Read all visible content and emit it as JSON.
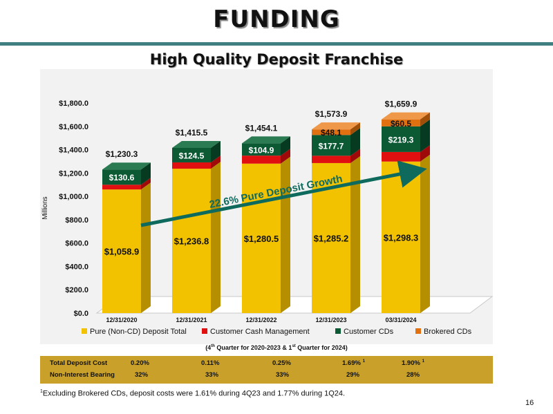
{
  "page": {
    "title": "FUNDING",
    "subtitle": "High Quality Deposit Franchise",
    "page_number": "16"
  },
  "chart_data": {
    "type": "bar",
    "stacked": true,
    "three_d": true,
    "ylabel": "Millions",
    "ylim": [
      0,
      1800
    ],
    "y_ticks": [
      "$0.0",
      "$200.0",
      "$400.0",
      "$600.0",
      "$800.0",
      "$1,000.0",
      "$1,200.0",
      "$1,400.0",
      "$1,600.0",
      "$1,800.0"
    ],
    "categories": [
      "12/31/2020",
      "12/31/2021",
      "12/31/2022",
      "12/31/2023",
      "03/31/2024"
    ],
    "series": [
      {
        "name": "Pure (Non-CD) Deposit Total",
        "color": "#f2c200",
        "side": "#b58f00",
        "top": "#f8d84a",
        "values": [
          1058.9,
          1236.8,
          1280.5,
          1285.2,
          1298.3
        ],
        "labels": [
          "$1,058.9",
          "$1,236.8",
          "$1,280.5",
          "$1,285.2",
          "$1,298.3"
        ]
      },
      {
        "name": "Customer Cash Management",
        "color": "#e01010",
        "side": "#9e0a0a",
        "top": "#f04a4a",
        "values": [
          40.8,
          54.2,
          68.7,
          62.9,
          81.8
        ],
        "labels": [
          "",
          "",
          "",
          "",
          ""
        ]
      },
      {
        "name": "Customer CDs",
        "color": "#0b5a34",
        "side": "#063a21",
        "top": "#2a7a52",
        "values": [
          130.6,
          124.5,
          104.9,
          177.7,
          219.3
        ],
        "labels": [
          "$130.6",
          "$124.5",
          "$104.9",
          "$177.7",
          "$219.3"
        ]
      },
      {
        "name": "Brokered CDs",
        "color": "#e07010",
        "side": "#a04e08",
        "top": "#f0984a",
        "values": [
          0,
          0,
          0,
          48.1,
          60.5
        ],
        "labels": [
          "",
          "",
          "",
          "$48.1",
          "$60.5"
        ]
      }
    ],
    "totals": [
      "$1,230.3",
      "$1,415.5",
      "$1,454.1",
      "$1,573.9",
      "$1,659.9"
    ],
    "legend_position": "bottom",
    "annotation": "22.6% Pure Deposit Growth",
    "arrow_color": "#0f6a5e"
  },
  "quarter_note": {
    "prefix": "(4",
    "sup1": "th",
    "middle": " Quarter for 2020-2023 & 1",
    "sup2": "st",
    "suffix": " Quarter for 2024)"
  },
  "cost_table": {
    "rows": [
      {
        "label": "Total Deposit Cost",
        "values": [
          "0.20%",
          "0.11%",
          "0.25%",
          "1.69%",
          "1.90%"
        ],
        "marks": [
          "",
          "",
          "",
          "1",
          "1"
        ]
      },
      {
        "label": "Non-Interest Bearing",
        "values": [
          "32%",
          "33%",
          "33%",
          "29%",
          "28%"
        ],
        "marks": [
          "",
          "",
          "",
          "",
          ""
        ]
      }
    ]
  },
  "footnote": {
    "mark": "1",
    "text": "Excluding Brokered CDs, deposit costs were 1.61% during 4Q23 and 1.77% during 1Q24."
  }
}
